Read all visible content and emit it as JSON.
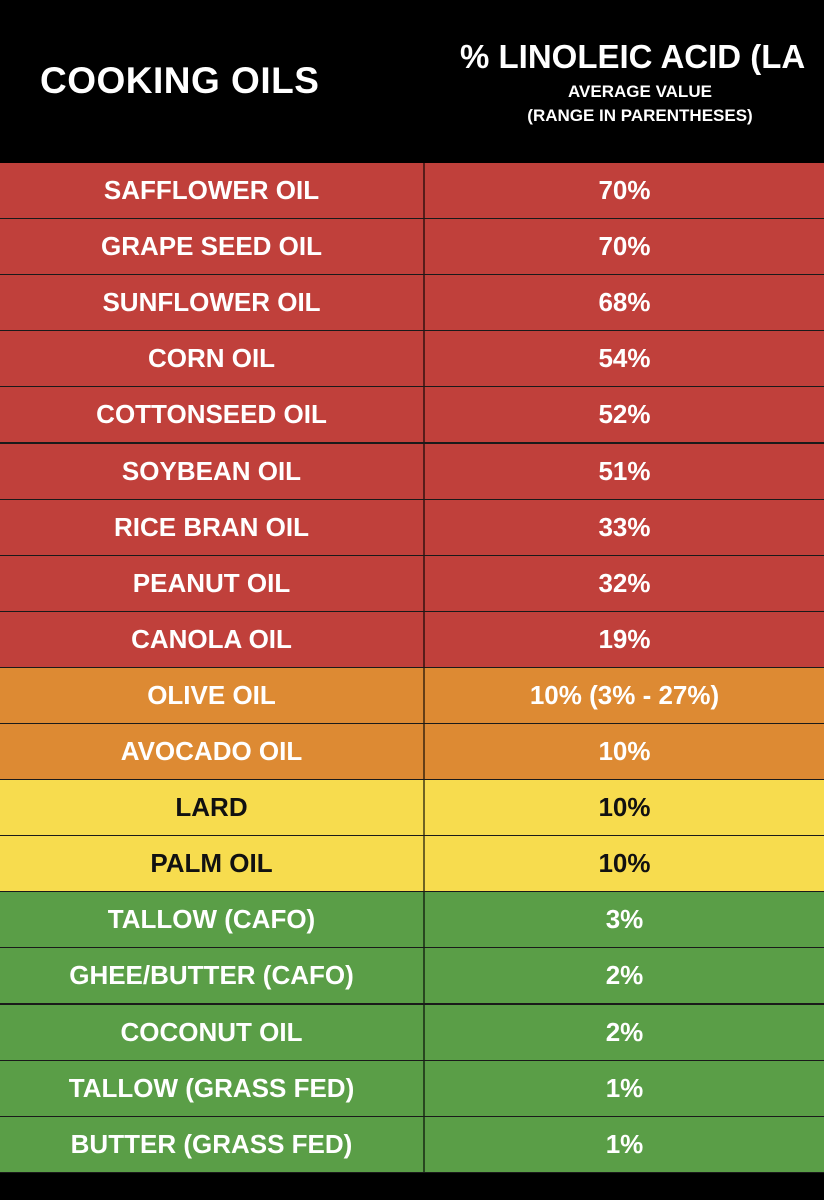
{
  "header": {
    "left_title": "COOKING OILS",
    "right_title": "% LINOLEIC ACID (LA",
    "right_sub1": "AVERAGE VALUE",
    "right_sub2": "(RANGE IN PARENTHESES)"
  },
  "colors": {
    "red": "#c0403b",
    "orange": "#dd8a33",
    "yellow": "#f7dc4e",
    "green": "#5a9e47",
    "header_bg": "#000000"
  },
  "rows": [
    {
      "name": "SAFFLOWER OIL",
      "value": "70%",
      "tier": "red"
    },
    {
      "name": "GRAPE SEED OIL",
      "value": "70%",
      "tier": "red"
    },
    {
      "name": "SUNFLOWER OIL",
      "value": "68%",
      "tier": "red"
    },
    {
      "name": "CORN OIL",
      "value": "54%",
      "tier": "red"
    },
    {
      "name": "COTTONSEED OIL",
      "value": "52%",
      "tier": "red"
    },
    {
      "name": "SOYBEAN OIL",
      "value": "51%",
      "tier": "red"
    },
    {
      "name": "RICE BRAN OIL",
      "value": "33%",
      "tier": "red"
    },
    {
      "name": "PEANUT OIL",
      "value": "32%",
      "tier": "red"
    },
    {
      "name": "CANOLA OIL",
      "value": "19%",
      "tier": "red"
    },
    {
      "name": "OLIVE OIL",
      "value": "10% (3% - 27%)",
      "tier": "orange"
    },
    {
      "name": "AVOCADO OIL",
      "value": "10%",
      "tier": "orange"
    },
    {
      "name": "LARD",
      "value": "10%",
      "tier": "yellow"
    },
    {
      "name": "PALM OIL",
      "value": "10%",
      "tier": "yellow"
    },
    {
      "name": "TALLOW (CAFO)",
      "value": "3%",
      "tier": "green"
    },
    {
      "name": "GHEE/BUTTER (CAFO)",
      "value": "2%",
      "tier": "green"
    },
    {
      "name": "COCONUT OIL",
      "value": "2%",
      "tier": "green"
    },
    {
      "name": "TALLOW (GRASS FED)",
      "value": "1%",
      "tier": "green"
    },
    {
      "name": "BUTTER (GRASS FED)",
      "value": "1%",
      "tier": "green"
    }
  ]
}
